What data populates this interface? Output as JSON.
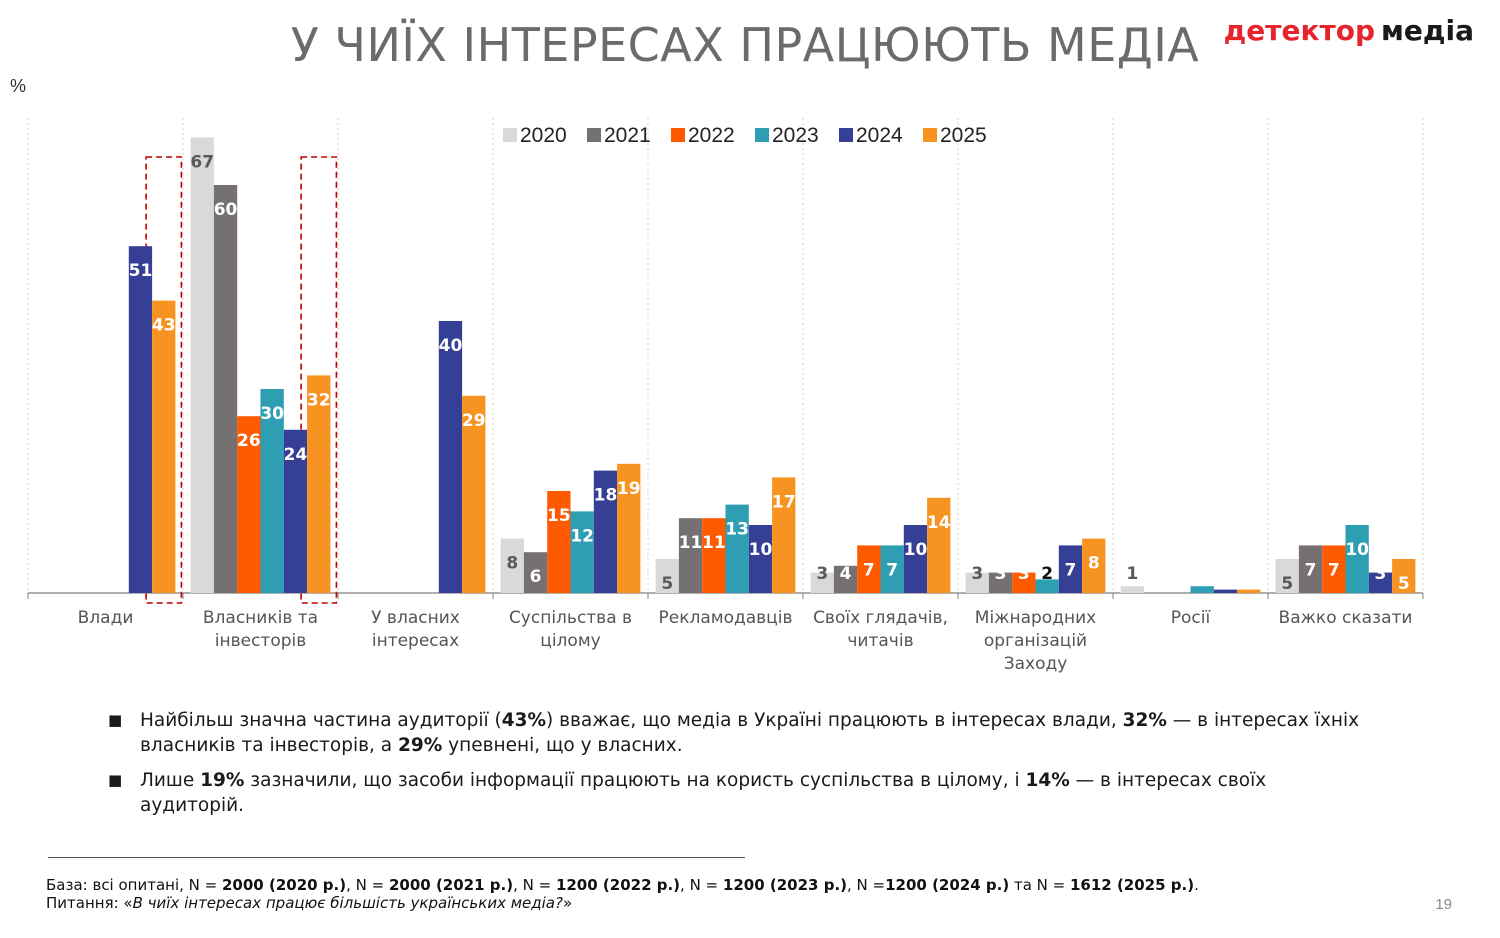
{
  "title": "У ЧИЇХ ІНТЕРЕСАХ ПРАЦЮЮТЬ МЕДІА",
  "logo": {
    "word1": "детектор",
    "word2": "медіа"
  },
  "unit": "%",
  "colors": {
    "2020": "#d9d9d9",
    "2021": "#767171",
    "2022": "#fe5a00",
    "2023": "#2e9eb3",
    "2024": "#343f95",
    "2025": "#f79320",
    "highlight": "#c00000"
  },
  "chart_data": {
    "type": "bar",
    "legend_position": "top",
    "highlighted_categories": [
      "Влади",
      "Власників та інвесторів"
    ],
    "categories": [
      [
        "Влади"
      ],
      [
        "Власників та",
        "інвесторів"
      ],
      [
        "У власних",
        "інтересах"
      ],
      [
        "Суспільства в",
        "цілому"
      ],
      [
        "Рекламодавців"
      ],
      [
        "Своїх глядачів,",
        "читачів"
      ],
      [
        "Міжнародних",
        "організацій",
        "Заходу"
      ],
      [
        "Росії"
      ],
      [
        "Важко сказати"
      ]
    ],
    "series": [
      {
        "name": "2020",
        "values": [
          null,
          67,
          null,
          8,
          5,
          3,
          3,
          1,
          5
        ],
        "labels": [
          "",
          "67",
          "",
          "8",
          "5",
          "3",
          "3",
          "1",
          "5"
        ]
      },
      {
        "name": "2021",
        "values": [
          null,
          60,
          null,
          6,
          11,
          4,
          3,
          0,
          7
        ],
        "labels": [
          "",
          "60",
          "",
          "6",
          "11",
          "4",
          "3",
          "",
          "7"
        ]
      },
      {
        "name": "2022",
        "values": [
          null,
          26,
          null,
          15,
          11,
          7,
          3,
          null,
          7
        ],
        "labels": [
          "",
          "26",
          "",
          "15",
          "11",
          "7",
          "3",
          "",
          "7"
        ]
      },
      {
        "name": "2023",
        "values": [
          null,
          30,
          null,
          12,
          13,
          7,
          2,
          1,
          10
        ],
        "labels": [
          "",
          "30",
          "",
          "12",
          "13",
          "7",
          "2",
          "",
          "10"
        ]
      },
      {
        "name": "2024",
        "values": [
          51,
          24,
          40,
          18,
          10,
          10,
          7,
          0.5,
          3
        ],
        "labels": [
          "51",
          "24",
          "40",
          "18",
          "10",
          "10",
          "7",
          "",
          "3"
        ]
      },
      {
        "name": "2025",
        "values": [
          43,
          32,
          29,
          19,
          17,
          14,
          8,
          0.5,
          5
        ],
        "labels": [
          "43",
          "32",
          "29",
          "19",
          "17",
          "14",
          "8",
          "",
          "5"
        ]
      }
    ]
  },
  "bullets": [
    {
      "parts": [
        {
          "t": "Найбільш значна частина аудиторії ("
        },
        {
          "t": "43%",
          "b": true
        },
        {
          "t": ")  вважає, що медіа в Україні працюють в інтересах влади, "
        },
        {
          "t": "32%",
          "b": true
        },
        {
          "t": " — в інтересах їхніх  власників та інвесторів, а "
        },
        {
          "t": "29%",
          "b": true
        },
        {
          "t": " упевнені, що у власних."
        }
      ]
    },
    {
      "parts": [
        {
          "t": "Лише "
        },
        {
          "t": "19%",
          "b": true
        },
        {
          "t": " зазначили, що засоби інформації працюють на користь суспільства в цілому, і "
        },
        {
          "t": "14%",
          "b": true
        },
        {
          "t": " — в інтересах своїх аудиторій."
        }
      ]
    }
  ],
  "footnote": {
    "base_parts": [
      {
        "t": "База: всі опитані, N = "
      },
      {
        "t": "2000 (2020 р.)",
        "b": true
      },
      {
        "t": ", N = "
      },
      {
        "t": "2000 (2021 р.)",
        "b": true
      },
      {
        "t": ", N = "
      },
      {
        "t": "1200 (2022 р.)",
        "b": true
      },
      {
        "t": ", N = "
      },
      {
        "t": "1200 (2023 р.)",
        "b": true
      },
      {
        "t": ", N ="
      },
      {
        "t": "1200 (2024 р.)",
        "b": true
      },
      {
        "t": " та N = "
      },
      {
        "t": "1612 (2025 р.)",
        "b": true
      },
      {
        "t": "."
      }
    ],
    "question_prefix": "Питання: «",
    "question": "В чиїх інтересах працює більшість українських медіа?",
    "question_suffix": "»"
  },
  "page_number": "19"
}
